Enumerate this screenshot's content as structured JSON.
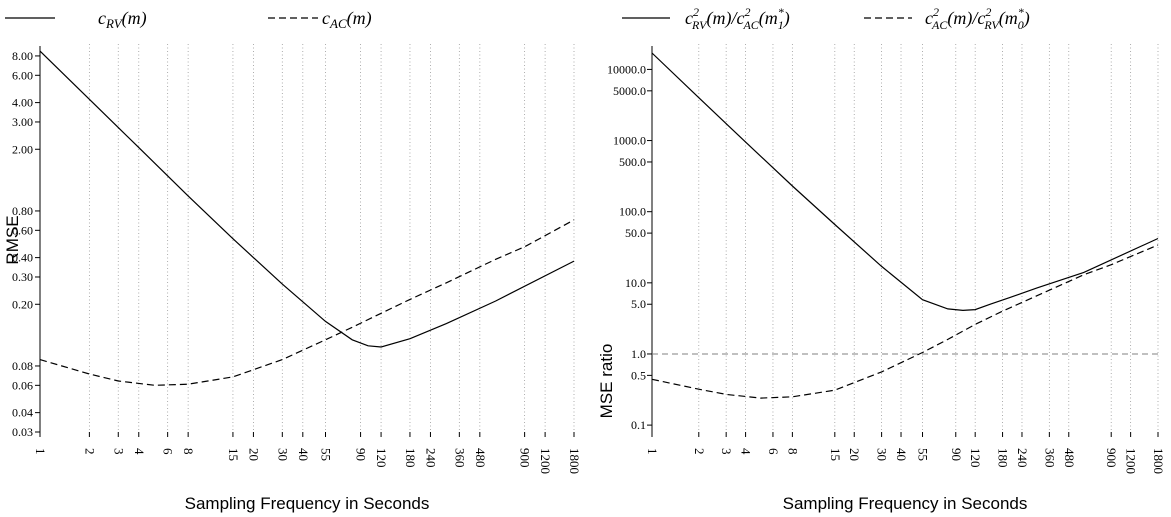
{
  "chart_data": [
    {
      "type": "line",
      "ylabel": "RMSE",
      "xlabel": "Sampling Frequency in Seconds",
      "x_scale": "log",
      "y_scale": "log",
      "xlim": [
        1,
        1800
      ],
      "ylim": [
        0.03,
        9.0
      ],
      "x_ticks": [
        1,
        2,
        3,
        4,
        6,
        8,
        15,
        20,
        30,
        40,
        55,
        90,
        120,
        180,
        240,
        360,
        480,
        900,
        1200,
        1800
      ],
      "x_tick_labels": [
        "1",
        "2",
        "3",
        "4",
        "6",
        "8",
        "15",
        "20",
        "30",
        "40",
        "55",
        "90",
        "120",
        "180",
        "240",
        "360",
        "480",
        "900",
        "1200",
        "1800"
      ],
      "y_ticks": [
        0.03,
        0.04,
        0.06,
        0.08,
        0.2,
        0.3,
        0.4,
        0.6,
        0.8,
        2.0,
        3.0,
        4.0,
        6.0,
        8.0
      ],
      "y_tick_labels": [
        "0.03",
        "0.04",
        "0.06",
        "0.08",
        "0.20",
        "0.30",
        "0.40",
        "0.60",
        "0.80",
        "2.00",
        "3.00",
        "4.00",
        "6.00",
        "8.00"
      ],
      "legend": {
        "placement": "top-left"
      },
      "series": [
        {
          "name": "c_RV(m)",
          "style": "solid",
          "x": [
            1,
            2,
            4,
            8,
            15,
            30,
            55,
            80,
            100,
            120,
            180,
            300,
            600,
            1800
          ],
          "y": [
            8.6,
            4.2,
            2.05,
            1.0,
            0.53,
            0.27,
            0.155,
            0.118,
            0.108,
            0.106,
            0.12,
            0.15,
            0.21,
            0.38
          ]
        },
        {
          "name": "c_AC(m)",
          "style": "dashed",
          "x": [
            1,
            2,
            3,
            5,
            8,
            15,
            30,
            55,
            80,
            120,
            180,
            300,
            600,
            900,
            1800
          ],
          "y": [
            0.088,
            0.071,
            0.064,
            0.06,
            0.061,
            0.068,
            0.088,
            0.118,
            0.142,
            0.175,
            0.215,
            0.275,
            0.39,
            0.47,
            0.7
          ]
        }
      ]
    },
    {
      "type": "line",
      "ylabel": "MSE ratio",
      "xlabel": "Sampling Frequency in Seconds",
      "x_scale": "log",
      "y_scale": "log",
      "xlim": [
        1,
        1800
      ],
      "ylim": [
        0.08,
        20000
      ],
      "x_ticks": [
        1,
        2,
        3,
        4,
        6,
        8,
        15,
        20,
        30,
        40,
        55,
        90,
        120,
        180,
        240,
        360,
        480,
        900,
        1200,
        1800
      ],
      "x_tick_labels": [
        "1",
        "2",
        "3",
        "4",
        "6",
        "8",
        "15",
        "20",
        "30",
        "40",
        "55",
        "90",
        "120",
        "180",
        "240",
        "360",
        "480",
        "900",
        "1200",
        "1800"
      ],
      "y_ticks": [
        0.1,
        0.5,
        1.0,
        5.0,
        10.0,
        50.0,
        100.0,
        500.0,
        1000.0,
        5000.0,
        10000.0
      ],
      "y_tick_labels": [
        "0.1",
        "0.5",
        "1.0",
        "5.0",
        "10.0",
        "50.0",
        "100.0",
        "500.0",
        "1000.0",
        "5000.0",
        "10000.0"
      ],
      "reference_line": {
        "y": 1.0,
        "style": "dashed",
        "color": "#808080"
      },
      "legend": {
        "placement": "top"
      },
      "series": [
        {
          "name": "c²_RV(m)/c²_AC(m₁*)",
          "style": "solid",
          "x": [
            1,
            2,
            4,
            8,
            15,
            30,
            55,
            80,
            100,
            120,
            150,
            200,
            300,
            600,
            1800
          ],
          "y": [
            17000,
            4000,
            950,
            230,
            66,
            17,
            5.8,
            4.3,
            4.1,
            4.2,
            5.0,
            6.2,
            8.5,
            14.0,
            42.0
          ]
        },
        {
          "name": "c²_AC(m)/c²_RV(m₀*)",
          "style": "dashed",
          "x": [
            1,
            2,
            3,
            5,
            8,
            15,
            30,
            55,
            80,
            120,
            180,
            300,
            600,
            900,
            1800
          ],
          "y": [
            0.44,
            0.32,
            0.27,
            0.24,
            0.25,
            0.31,
            0.56,
            1.05,
            1.6,
            2.6,
            4.0,
            6.6,
            13.0,
            18.0,
            34.0
          ]
        }
      ]
    }
  ]
}
